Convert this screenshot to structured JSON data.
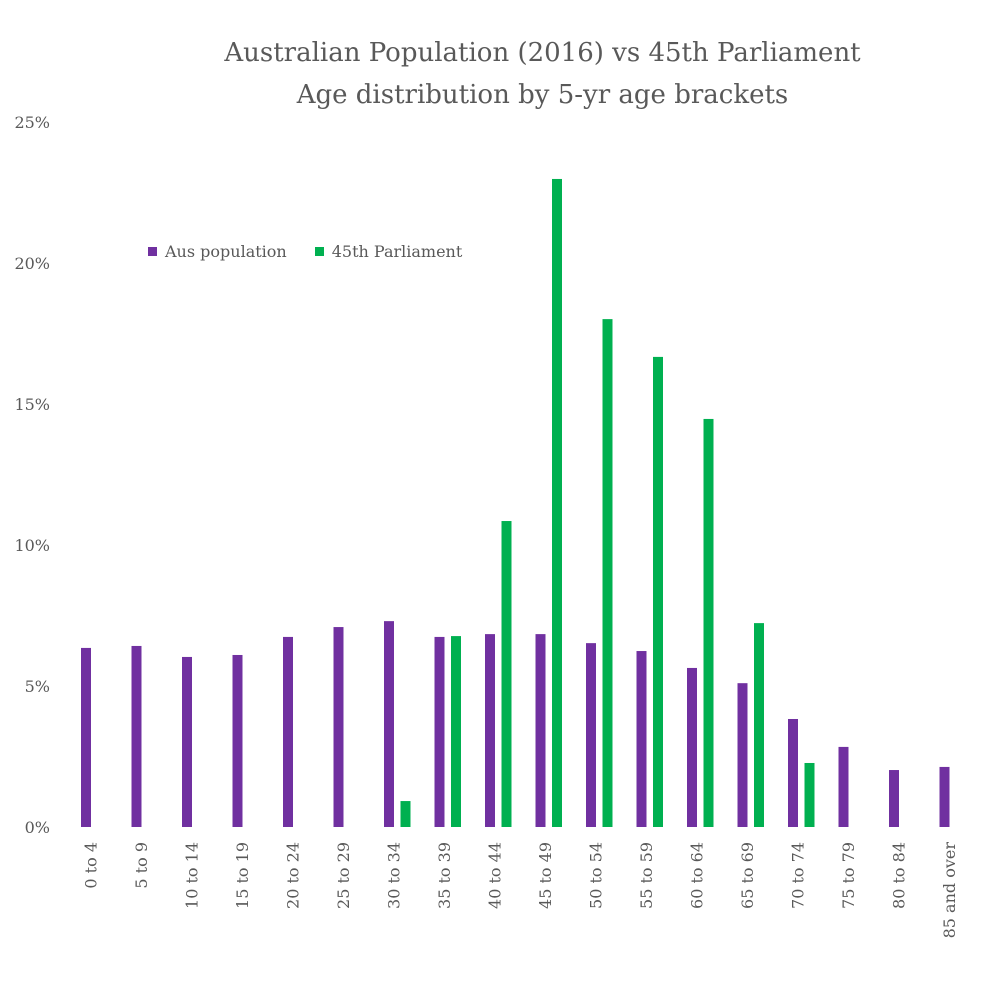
{
  "chart_data": {
    "type": "bar",
    "title": "Australian Population (2016) vs 45th Parliament",
    "subtitle": "Age distribution by 5-yr age brackets",
    "xlabel": "",
    "ylabel": "",
    "ylim": [
      0,
      25
    ],
    "yticks": [
      "0%",
      "5%",
      "10%",
      "15%",
      "20%",
      "25%"
    ],
    "grid": false,
    "legend_position": "top-left",
    "categories": [
      "0 to 4",
      "5 to 9",
      "10 to 14",
      "15 to 19",
      "20 to 24",
      "25 to 29",
      "30 to 34",
      "35 to 39",
      "40 to 44",
      "45 to 49",
      "50 to 54",
      "55 to 59",
      "60 to 64",
      "65 to 69",
      "70 to 74",
      "75 to 79",
      "80 to 84",
      "85 and over"
    ],
    "series": [
      {
        "name": "Aus population",
        "color": "#7030a0",
        "values": [
          6.35,
          6.42,
          6.03,
          6.1,
          6.74,
          7.09,
          7.3,
          6.74,
          6.84,
          6.84,
          6.52,
          6.24,
          5.64,
          5.1,
          3.83,
          2.84,
          2.02,
          2.13
        ]
      },
      {
        "name": "45th Parliament",
        "color": "#00b050",
        "values": [
          0,
          0,
          0,
          0,
          0,
          0,
          0.92,
          6.77,
          10.85,
          22.98,
          18.01,
          16.67,
          14.47,
          7.23,
          2.27,
          0,
          0,
          0
        ]
      }
    ]
  }
}
